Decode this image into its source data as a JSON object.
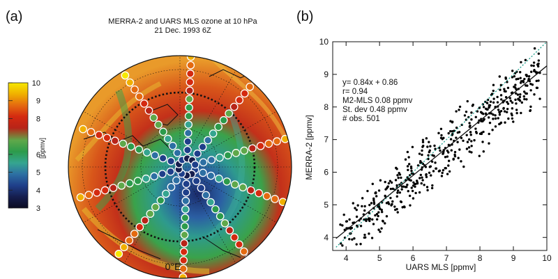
{
  "panels": {
    "a": {
      "label": "(a)"
    },
    "b": {
      "label": "(b)"
    }
  },
  "map": {
    "title_line1": "MERRA-2 and UARS MLS ozone at 10 hPa",
    "title_line2": "21 Dec. 1993 6Z",
    "longitude_label": "0°E",
    "colorbar": {
      "unit": "[ppmv]",
      "ticks": [
        "10",
        "9",
        "8",
        "6",
        "5",
        "4",
        "3"
      ],
      "colors": [
        "#f7e800",
        "#f0b000",
        "#e46a10",
        "#d42a10",
        "#b82418",
        "#5fa84a",
        "#2c9b4b",
        "#35a590",
        "#2d6fa3",
        "#1f3f8a",
        "#161e4e",
        "#0b0b22"
      ]
    },
    "orbit_tracks_count": 10
  },
  "chart_data": {
    "type": "scatter",
    "xlabel": "UARS MLS [ppmv]",
    "ylabel": "MERRA-2 [ppmv]",
    "xlim": [
      3.6,
      10
    ],
    "ylim": [
      3.6,
      10
    ],
    "xticks": [
      4,
      5,
      6,
      7,
      8,
      9,
      10
    ],
    "yticks": [
      4,
      5,
      6,
      7,
      8,
      9,
      10
    ],
    "fit": {
      "slope": 0.84,
      "intercept": 0.86
    },
    "one_to_one_color": "#1a9c8a",
    "n_points": 501,
    "stats": [
      "y= 0.84x + 0.86",
      "r= 0.94",
      "M2-MLS  0.08 ppmv",
      "St. dev  0.48 ppmv",
      "# obs. 501"
    ]
  }
}
